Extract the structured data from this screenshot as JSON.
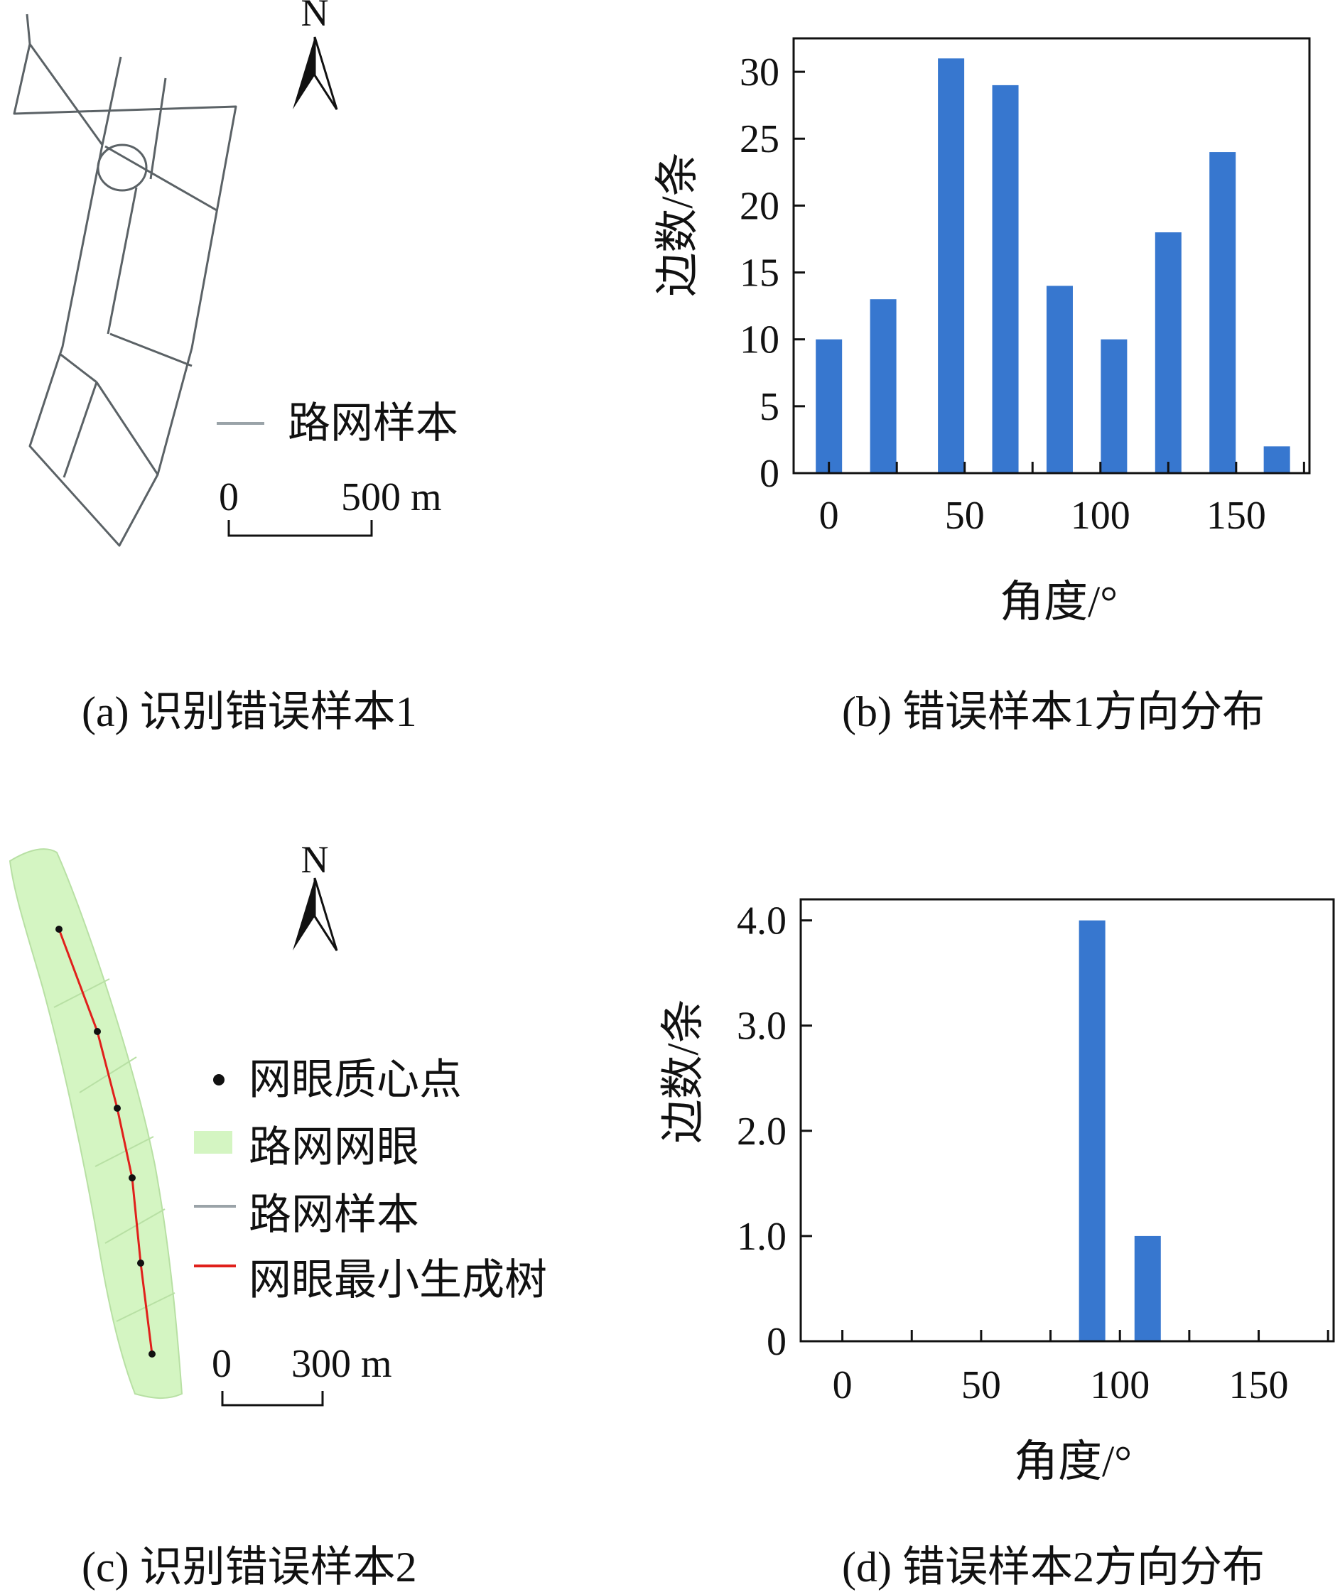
{
  "panels": {
    "a": {
      "caption": "(a) 识别错误样本1",
      "north": "N",
      "legend": [
        {
          "label": "路网样本",
          "color": "#9aa3a8"
        }
      ],
      "scale": {
        "start": "0",
        "end": "500 m"
      }
    },
    "c": {
      "caption": "(c) 识别错误样本2",
      "north": "N",
      "legend": [
        {
          "label": "网眼质心点",
          "color": "#111111",
          "symbol": "dot"
        },
        {
          "label": "路网网眼",
          "color": "#d4f5c2",
          "symbol": "box"
        },
        {
          "label": "路网样本",
          "color": "#9aa3a8",
          "symbol": "line"
        },
        {
          "label": "网眼最小生成树",
          "color": "#e0201b",
          "symbol": "line"
        }
      ],
      "scale": {
        "start": "0",
        "end": "300 m"
      }
    }
  },
  "chart_data": [
    {
      "id": "b",
      "type": "bar",
      "caption": "(b) 错误样本1方向分布",
      "xlabel": "角度/°",
      "ylabel": "边数/条",
      "x": [
        0,
        20,
        45,
        65,
        85,
        105,
        125,
        145,
        165
      ],
      "values": [
        10,
        13,
        31,
        29,
        14,
        10,
        18,
        24,
        2
      ],
      "xlim": [
        -13,
        177
      ],
      "ylim": [
        0,
        32.5
      ],
      "xticks": [
        0,
        50,
        100,
        150
      ],
      "xticklabels": [
        "0",
        "50",
        "100",
        "150"
      ],
      "yticks": [
        0,
        5,
        10,
        15,
        20,
        25,
        30
      ],
      "yticklabels": [
        "0",
        "5",
        "10",
        "15",
        "20",
        "25",
        "30"
      ],
      "minor_xticks": [
        0,
        25,
        50,
        75,
        100,
        125,
        150,
        175
      ],
      "bar_color": "#3777cf",
      "grid": false
    },
    {
      "id": "d",
      "type": "bar",
      "caption": "(d) 错误样本2方向分布",
      "xlabel": "角度/°",
      "ylabel": "边数/条",
      "x": [
        90,
        110
      ],
      "values": [
        4.0,
        1.0
      ],
      "xlim": [
        -15,
        177
      ],
      "ylim": [
        0,
        4.2
      ],
      "xticks": [
        0,
        50,
        100,
        150
      ],
      "xticklabels": [
        "0",
        "50",
        "100",
        "150"
      ],
      "yticks": [
        0,
        1.0,
        2.0,
        3.0,
        4.0
      ],
      "yticklabels": [
        "0",
        "1.0",
        "2.0",
        "3.0",
        "4.0"
      ],
      "minor_xticks": [
        0,
        25,
        50,
        75,
        100,
        125,
        150,
        175
      ],
      "bar_color": "#3777cf",
      "grid": false
    }
  ]
}
